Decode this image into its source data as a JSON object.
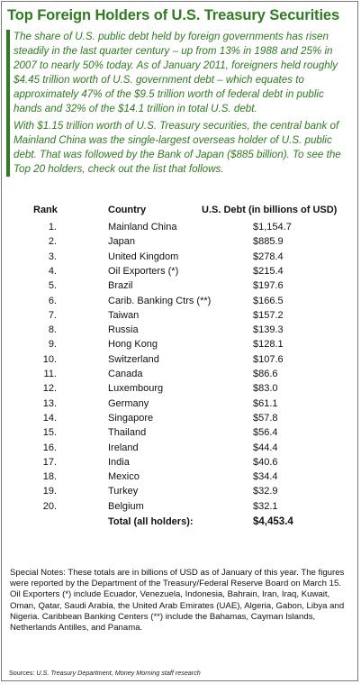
{
  "title": "Top Foreign Holders of U.S. Treasury Securities",
  "intro": {
    "paragraph1": "The share of U.S. public debt held by foreign governments has risen steadily in the last quarter century – up from 13% in 1988 and 25% in 2007 to nearly 50% today. As of January 2011, foreigners held roughly $4.45 trillion worth of U.S. government debt – which equates to approximately 47% of the $9.5 trillion worth of federal debt in public hands and 32% of the $14.1 trillion in total U.S. debt.",
    "paragraph2": "With $1.15 trillion worth of U.S. Treasury securities, the central bank of Mainland China was the single-largest overseas holder of U.S. public debt. That was followed by the Bank of Japan ($885 billion). To see the Top 20 holders, check out the list that follows."
  },
  "table": {
    "headers": {
      "rank": "Rank",
      "country": "Country",
      "debt": "U.S. Debt (in billions of USD)"
    },
    "rows": [
      {
        "rank": "1.",
        "country": "Mainland China",
        "debt": "$1,154.7"
      },
      {
        "rank": "2.",
        "country": "Japan",
        "debt": "$885.9"
      },
      {
        "rank": "3.",
        "country": "United Kingdom",
        "debt": "$278.4"
      },
      {
        "rank": "4.",
        "country": "Oil Exporters (*)",
        "debt": "$215.4"
      },
      {
        "rank": "5.",
        "country": "Brazil",
        "debt": "$197.6"
      },
      {
        "rank": "6.",
        "country": "Carib. Banking Ctrs (**)",
        "debt": "$166.5"
      },
      {
        "rank": "7.",
        "country": "Taiwan",
        "debt": "$157.2"
      },
      {
        "rank": "8.",
        "country": "Russia",
        "debt": "$139.3"
      },
      {
        "rank": "9.",
        "country": "Hong Kong",
        "debt": "$128.1"
      },
      {
        "rank": "10.",
        "country": "Switzerland",
        "debt": "$107.6"
      },
      {
        "rank": "11.",
        "country": "Canada",
        "debt": "$86.6"
      },
      {
        "rank": "12.",
        "country": "Luxembourg",
        "debt": "$83.0"
      },
      {
        "rank": "13.",
        "country": "Germany",
        "debt": "$61.1"
      },
      {
        "rank": "14.",
        "country": "Singapore",
        "debt": "$57.8"
      },
      {
        "rank": "15.",
        "country": "Thailand",
        "debt": "$56.4"
      },
      {
        "rank": "16.",
        "country": "Ireland",
        "debt": "$44.4"
      },
      {
        "rank": "17.",
        "country": "India",
        "debt": "$40.6"
      },
      {
        "rank": "18.",
        "country": "Mexico",
        "debt": "$34.4"
      },
      {
        "rank": "19.",
        "country": "Turkey",
        "debt": "$32.9"
      },
      {
        "rank": "20.",
        "country": "Belgium",
        "debt": "$32.1"
      }
    ],
    "total": {
      "label": "Total (all holders):",
      "value": "$4,453.4"
    }
  },
  "notes": {
    "special": "Special Notes: These totals are in billions of USD as of January of this year. The figures were reported by the Department of the Treasury/Federal Reserve Board on March 15.",
    "definitions": "Oil Exporters (*) include Ecuador, Venezuela, Indonesia, Bahrain, Iran, Iraq, Kuwait, Oman, Qatar, Saudi Arabia, the United Arab Emirates (UAE), Algeria, Gabon, Libya and Nigeria. Caribbean Banking Centers (**) include the Bahamas, Cayman Islands, Netherlands Antilles, and Panama."
  },
  "sources": {
    "label": "Sources:",
    "text": "U.S. Treasury Department, Money Morning staff research"
  },
  "colors": {
    "accent": "#2e7d1e",
    "border": "#7a7a7a"
  }
}
